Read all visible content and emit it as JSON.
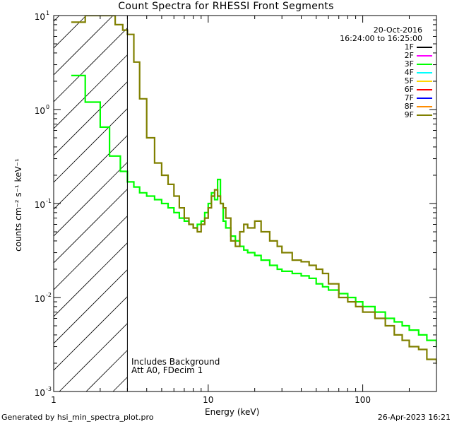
{
  "chart_data": {
    "type": "line",
    "title": "Count Spectra for RHESSI Front Segments",
    "xlabel": "Energy (keV)",
    "ylabel": "counts cm⁻² s⁻¹ keV⁻¹",
    "xscale": "log",
    "yscale": "log",
    "xlim": [
      1,
      300
    ],
    "ylim": [
      0.001,
      10
    ],
    "xticks": [
      {
        "v": 1,
        "label": "1"
      },
      {
        "v": 10,
        "label": "10"
      },
      {
        "v": 100,
        "label": "100"
      }
    ],
    "yticks": [
      {
        "v": 10,
        "label": "10",
        "exp": "1"
      },
      {
        "v": 1,
        "label": "10",
        "exp": "0"
      },
      {
        "v": 0.1,
        "label": "10",
        "exp": "-1"
      },
      {
        "v": 0.01,
        "label": "10",
        "exp": "-2"
      },
      {
        "v": 0.001,
        "label": "10",
        "exp": "-3"
      }
    ],
    "hatched_region_max_keV": 3,
    "series": [
      {
        "name": "1F",
        "color": "#000000",
        "x": [],
        "y": []
      },
      {
        "name": "2F",
        "color": "#ff00ff",
        "x": [],
        "y": []
      },
      {
        "name": "3F",
        "color": "#00ff00",
        "x": [
          1.3,
          1.6,
          2.0,
          2.3,
          2.7,
          3.0,
          3.3,
          3.6,
          4.0,
          4.5,
          5.0,
          5.5,
          6.0,
          6.5,
          7.0,
          7.5,
          8.0,
          8.5,
          9.0,
          9.5,
          10.0,
          10.5,
          11.0,
          11.5,
          12.0,
          12.5,
          13.0,
          14.0,
          15.0,
          16.0,
          17.0,
          18.0,
          20.0,
          22.0,
          25.0,
          28.0,
          30.0,
          35.0,
          40.0,
          45.0,
          50.0,
          55.0,
          60.0,
          70.0,
          80.0,
          90.0,
          100.0,
          120.0,
          140.0,
          160.0,
          180.0,
          200.0,
          230.0,
          260.0,
          300.0
        ],
        "y": [
          2.3,
          1.2,
          0.65,
          0.32,
          0.22,
          0.17,
          0.15,
          0.13,
          0.12,
          0.11,
          0.1,
          0.09,
          0.08,
          0.07,
          0.065,
          0.06,
          0.055,
          0.06,
          0.065,
          0.08,
          0.1,
          0.13,
          0.11,
          0.18,
          0.1,
          0.065,
          0.055,
          0.045,
          0.04,
          0.035,
          0.032,
          0.03,
          0.028,
          0.025,
          0.022,
          0.02,
          0.019,
          0.018,
          0.017,
          0.016,
          0.014,
          0.013,
          0.012,
          0.011,
          0.01,
          0.009,
          0.008,
          0.007,
          0.006,
          0.0055,
          0.005,
          0.0045,
          0.004,
          0.0035,
          0.003
        ]
      },
      {
        "name": "4F",
        "color": "#00ffff",
        "x": [],
        "y": []
      },
      {
        "name": "5F",
        "color": "#ffd700",
        "x": [],
        "y": []
      },
      {
        "name": "6F",
        "color": "#ff0000",
        "x": [],
        "y": []
      },
      {
        "name": "7F",
        "color": "#0000ff",
        "x": [],
        "y": []
      },
      {
        "name": "8F",
        "color": "#ff8c00",
        "x": [],
        "y": []
      },
      {
        "name": "9F",
        "color": "#808000",
        "x": [
          1.3,
          1.6,
          2.0,
          2.5,
          2.8,
          3.0,
          3.3,
          3.6,
          4.0,
          4.5,
          5.0,
          5.5,
          6.0,
          6.5,
          7.0,
          7.5,
          8.0,
          8.5,
          9.0,
          9.5,
          10.0,
          10.5,
          11.0,
          11.5,
          12.0,
          12.5,
          13.0,
          14.0,
          15.0,
          16.0,
          17.0,
          18.0,
          20.0,
          22.0,
          25.0,
          28.0,
          30.0,
          35.0,
          40.0,
          45.0,
          50.0,
          55.0,
          60.0,
          70.0,
          80.0,
          90.0,
          100.0,
          120.0,
          140.0,
          160.0,
          180.0,
          200.0,
          230.0,
          260.0,
          300.0
        ],
        "y": [
          8.5,
          10.0,
          10.0,
          8.0,
          7.0,
          6.3,
          3.2,
          1.3,
          0.5,
          0.27,
          0.2,
          0.16,
          0.12,
          0.09,
          0.07,
          0.06,
          0.055,
          0.05,
          0.06,
          0.07,
          0.09,
          0.12,
          0.14,
          0.12,
          0.1,
          0.09,
          0.07,
          0.04,
          0.035,
          0.05,
          0.06,
          0.055,
          0.065,
          0.05,
          0.04,
          0.035,
          0.03,
          0.025,
          0.024,
          0.022,
          0.02,
          0.018,
          0.014,
          0.01,
          0.009,
          0.008,
          0.007,
          0.006,
          0.005,
          0.004,
          0.0035,
          0.003,
          0.0028,
          0.0022,
          0.002
        ]
      }
    ]
  },
  "date": "20-Oct-2016",
  "time_range": "16:24:00 to 16:25:00",
  "annotations": [
    "Includes Background",
    "Att A0, FDecim 1"
  ],
  "footer_left": "Generated by hsi_min_spectra_plot.pro",
  "footer_right": "26-Apr-2023 16:21"
}
